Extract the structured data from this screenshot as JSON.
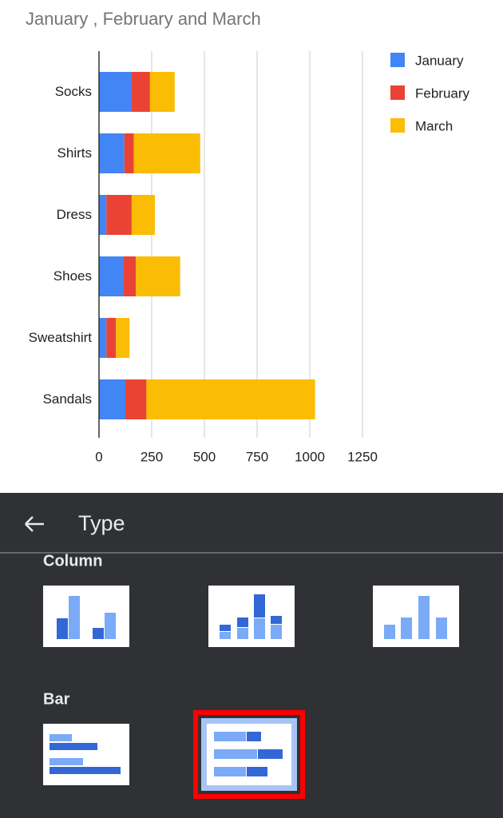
{
  "chart_data": {
    "type": "bar",
    "orientation": "horizontal",
    "stacked": true,
    "title": "January , February and March",
    "categories": [
      "Socks",
      "Shirts",
      "Dress",
      "Shoes",
      "Sweatshirt",
      "Sandals"
    ],
    "series": [
      {
        "name": "January",
        "color": "#4285f4",
        "values": [
          155,
          120,
          35,
          115,
          35,
          125
        ]
      },
      {
        "name": "February",
        "color": "#ea4335",
        "values": [
          87,
          45,
          120,
          60,
          45,
          100
        ]
      },
      {
        "name": "March",
        "color": "#fbbc04",
        "values": [
          117,
          315,
          110,
          210,
          65,
          800
        ]
      }
    ],
    "xlim": [
      0,
      1250
    ],
    "xticks": [
      0,
      250,
      500,
      750,
      1000,
      1250
    ],
    "grid": true,
    "legend": "right"
  },
  "panel": {
    "title": "Type",
    "sections": [
      {
        "label": "Column"
      },
      {
        "label": "Bar"
      }
    ]
  }
}
